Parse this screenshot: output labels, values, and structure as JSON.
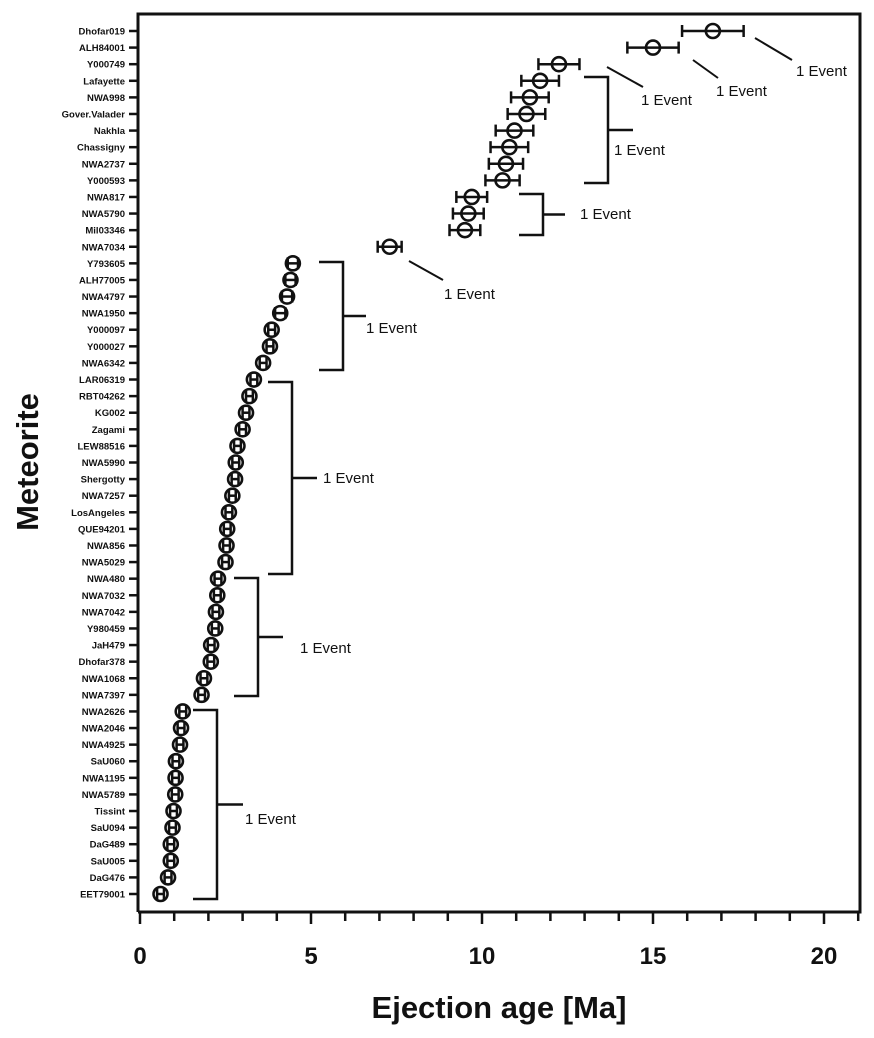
{
  "chart_data": {
    "type": "scatter",
    "title": "",
    "xlabel": "Ejection age [Ma]",
    "ylabel": "Meteorite",
    "xlim": [
      0,
      21
    ],
    "x_ticks": [
      0,
      5,
      10,
      15,
      20
    ],
    "x_minor_step": 1,
    "grid": false,
    "marker": "open-circle",
    "color": "#111111",
    "categories": [
      "Dhofar019",
      "ALH84001",
      "Y000749",
      "Lafayette",
      "NWA998",
      "Gover.Valader",
      "Nakhla",
      "Chassigny",
      "NWA2737",
      "Y000593",
      "NWA817",
      "NWA5790",
      "Mil03346",
      "NWA7034",
      "Y793605",
      "ALH77005",
      "NWA4797",
      "NWA1950",
      "Y000097",
      "Y000027",
      "NWA6342",
      "LAR06319",
      "RBT04262",
      "KG002",
      "Zagami",
      "LEW88516",
      "NWA5990",
      "Shergotty",
      "NWA7257",
      "LosAngeles",
      "QUE94201",
      "NWA856",
      "NWA5029",
      "NWA480",
      "NWA7032",
      "NWA7042",
      "Y980459",
      "JaH479",
      "Dhofar378",
      "NWA1068",
      "NWA7397",
      "NWA2626",
      "NWA2046",
      "NWA4925",
      "SaU060",
      "NWA1195",
      "NWA5789",
      "Tissint",
      "SaU094",
      "DaG489",
      "SaU005",
      "DaG476",
      "EET79001"
    ],
    "values": [
      16.75,
      15.0,
      12.25,
      11.7,
      11.4,
      11.3,
      10.95,
      10.8,
      10.7,
      10.6,
      9.7,
      9.6,
      9.5,
      7.3,
      4.47,
      4.4,
      4.3,
      4.1,
      3.85,
      3.8,
      3.6,
      3.33,
      3.2,
      3.1,
      3.0,
      2.85,
      2.8,
      2.78,
      2.7,
      2.6,
      2.55,
      2.53,
      2.5,
      2.28,
      2.26,
      2.22,
      2.2,
      2.08,
      2.07,
      1.87,
      1.8,
      1.25,
      1.2,
      1.17,
      1.05,
      1.04,
      1.03,
      0.98,
      0.95,
      0.9,
      0.9,
      0.82,
      0.6
    ],
    "errors": [
      0.9,
      0.75,
      0.6,
      0.55,
      0.55,
      0.55,
      0.55,
      0.55,
      0.5,
      0.5,
      0.45,
      0.45,
      0.45,
      0.35,
      0.15,
      0.15,
      0.15,
      0.15,
      0.1,
      0.1,
      0.1,
      0.1,
      0.1,
      0.1,
      0.1,
      0.1,
      0.1,
      0.1,
      0.1,
      0.1,
      0.1,
      0.1,
      0.1,
      0.1,
      0.1,
      0.1,
      0.1,
      0.1,
      0.1,
      0.1,
      0.1,
      0.1,
      0.1,
      0.1,
      0.1,
      0.1,
      0.1,
      0.1,
      0.1,
      0.1,
      0.1,
      0.1,
      0.1
    ],
    "annotations": [
      {
        "text": "1 Event",
        "type": "leader",
        "from": "Dhofar019"
      },
      {
        "text": "1 Event",
        "type": "leader",
        "from": "ALH84001"
      },
      {
        "text": "1 Event",
        "type": "leader",
        "from": "Y000749"
      },
      {
        "text": "1 Event",
        "type": "bracket",
        "from": "Lafayette",
        "to": "Y000593"
      },
      {
        "text": "1 Event",
        "type": "bracket",
        "from": "NWA817",
        "to": "Mil03346"
      },
      {
        "text": "1 Event",
        "type": "leader",
        "from": "NWA7034"
      },
      {
        "text": "1 Event",
        "type": "bracket",
        "from": "Y793605",
        "to": "NWA6342"
      },
      {
        "text": "1 Event",
        "type": "bracket",
        "from": "LAR06319",
        "to": "NWA5029"
      },
      {
        "text": "1 Event",
        "type": "bracket",
        "from": "NWA480",
        "to": "NWA7397"
      },
      {
        "text": "1 Event",
        "type": "bracket",
        "from": "NWA2626",
        "to": "EET79001"
      }
    ]
  }
}
